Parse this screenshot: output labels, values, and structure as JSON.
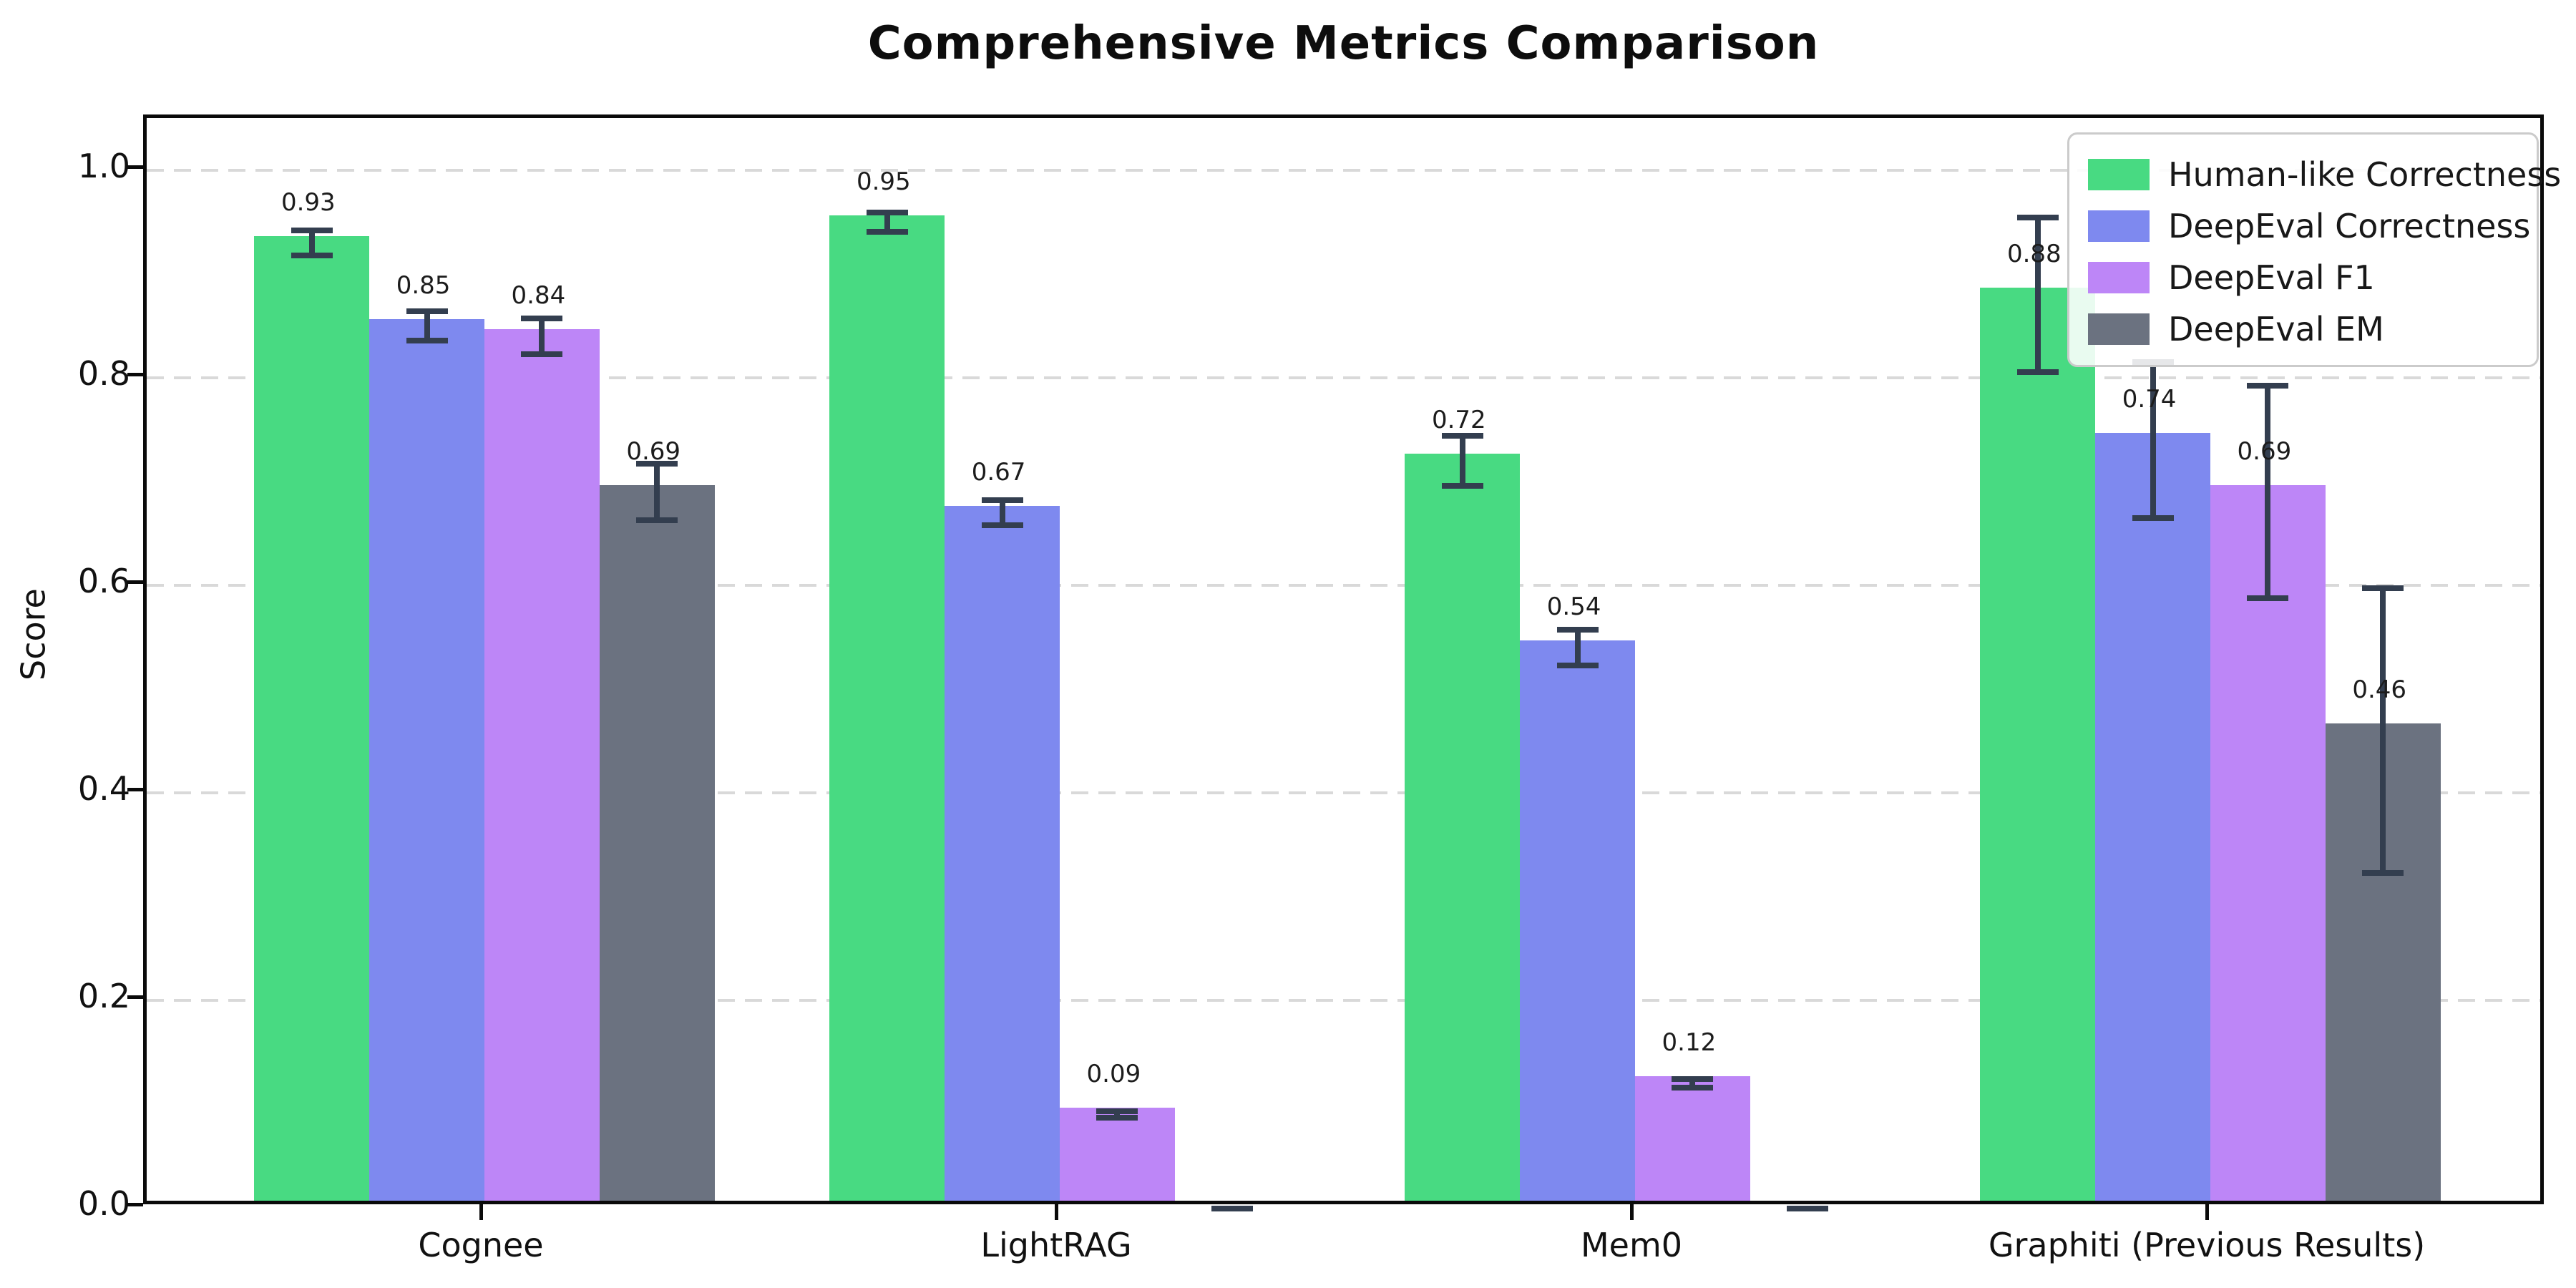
{
  "chart_data": {
    "type": "bar",
    "title": "Comprehensive Metrics Comparison",
    "ylabel": "Score",
    "xlabel": "",
    "categories": [
      "Cognee",
      "LightRAG",
      "Mem0",
      "Graphiti (Previous Results)"
    ],
    "series": [
      {
        "name": "Human-like Correctness",
        "color": "#48da82",
        "values": [
          0.93,
          0.95,
          0.72,
          0.88
        ],
        "errors": [
          0.015,
          0.012,
          0.027,
          0.077
        ],
        "labels": [
          "0.93",
          "0.95",
          "0.72",
          "0.88"
        ]
      },
      {
        "name": "DeepEval Correctness",
        "color": "#7e89ef",
        "values": [
          0.85,
          0.67,
          0.54,
          0.74
        ],
        "errors": [
          0.017,
          0.015,
          0.02,
          0.078
        ],
        "labels": [
          "0.85",
          "0.67",
          "0.54",
          "0.74"
        ]
      },
      {
        "name": "DeepEval F1",
        "color": "#bd86f7",
        "values": [
          0.84,
          0.09,
          0.12,
          0.69
        ],
        "errors": [
          0.02,
          0.006,
          0.007,
          0.105
        ],
        "labels": [
          "0.84",
          "0.09",
          "0.12",
          "0.69"
        ]
      },
      {
        "name": "DeepEval EM",
        "color": "#6b7280",
        "values": [
          0.69,
          0.0,
          0.0,
          0.46
        ],
        "errors": [
          0.03,
          0.002,
          0.002,
          0.14
        ],
        "labels": [
          "0.69",
          "",
          "",
          "0.46"
        ]
      }
    ],
    "error_bar_color": "#333e4f",
    "ylim": [
      0.0,
      1.05
    ],
    "yticks": [
      "0.0",
      "0.2",
      "0.4",
      "0.6",
      "0.8",
      "1.0"
    ],
    "grid": "horizontal-dashed",
    "legend_position": "upper-right"
  }
}
